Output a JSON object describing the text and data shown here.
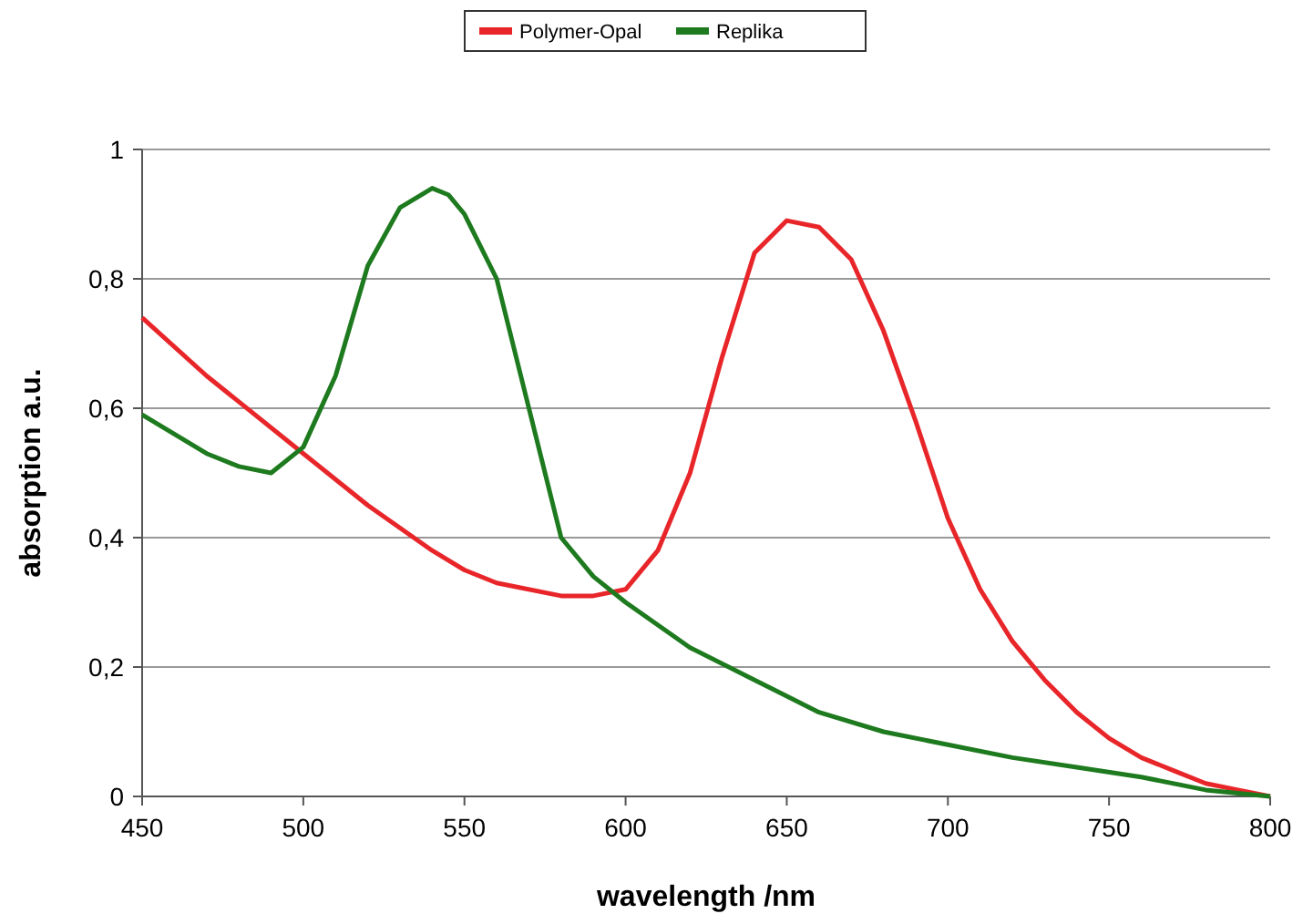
{
  "chart_data": {
    "type": "line",
    "xlabel": "wavelength /nm",
    "ylabel": "absorption a.u.",
    "xlim": [
      450,
      800
    ],
    "xticks": [
      450,
      500,
      550,
      600,
      650,
      700,
      750,
      800
    ],
    "ylim": [
      0,
      1
    ],
    "yticks": [
      0,
      {
        "value": 0.2,
        "label": "0,2"
      },
      {
        "value": 0.4,
        "label": "0,4"
      },
      {
        "value": 0.6,
        "label": "0,6"
      },
      {
        "value": 0.8,
        "label": "0,8"
      },
      1
    ],
    "grid": "y",
    "legend": "top",
    "marker": "none",
    "line_style": "solid",
    "series": [
      {
        "name": "Polymer-Opal",
        "color": "#e8262a",
        "x": [
          450,
          470,
          480,
          500,
          520,
          540,
          550,
          560,
          580,
          590,
          600,
          610,
          620,
          630,
          640,
          650,
          660,
          670,
          680,
          690,
          700,
          710,
          720,
          730,
          740,
          750,
          760,
          770,
          780,
          790,
          800
        ],
        "values": [
          0.74,
          0.65,
          0.61,
          0.53,
          0.45,
          0.38,
          0.35,
          0.33,
          0.31,
          0.31,
          0.32,
          0.38,
          0.5,
          0.68,
          0.84,
          0.89,
          0.88,
          0.83,
          0.72,
          0.58,
          0.43,
          0.32,
          0.24,
          0.18,
          0.13,
          0.09,
          0.06,
          0.04,
          0.02,
          0.01,
          0
        ]
      },
      {
        "name": "Replika",
        "color": "#1e7a1e",
        "x": [
          450,
          460,
          470,
          480,
          490,
          500,
          510,
          520,
          530,
          540,
          545,
          550,
          560,
          570,
          580,
          590,
          600,
          620,
          640,
          660,
          680,
          700,
          720,
          740,
          760,
          780,
          800
        ],
        "values": [
          0.59,
          0.56,
          0.53,
          0.51,
          0.5,
          0.54,
          0.65,
          0.82,
          0.91,
          0.94,
          0.93,
          0.9,
          0.8,
          0.6,
          0.4,
          0.34,
          0.3,
          0.23,
          0.18,
          0.13,
          0.1,
          0.08,
          0.06,
          0.045,
          0.03,
          0.01,
          0
        ]
      }
    ]
  }
}
